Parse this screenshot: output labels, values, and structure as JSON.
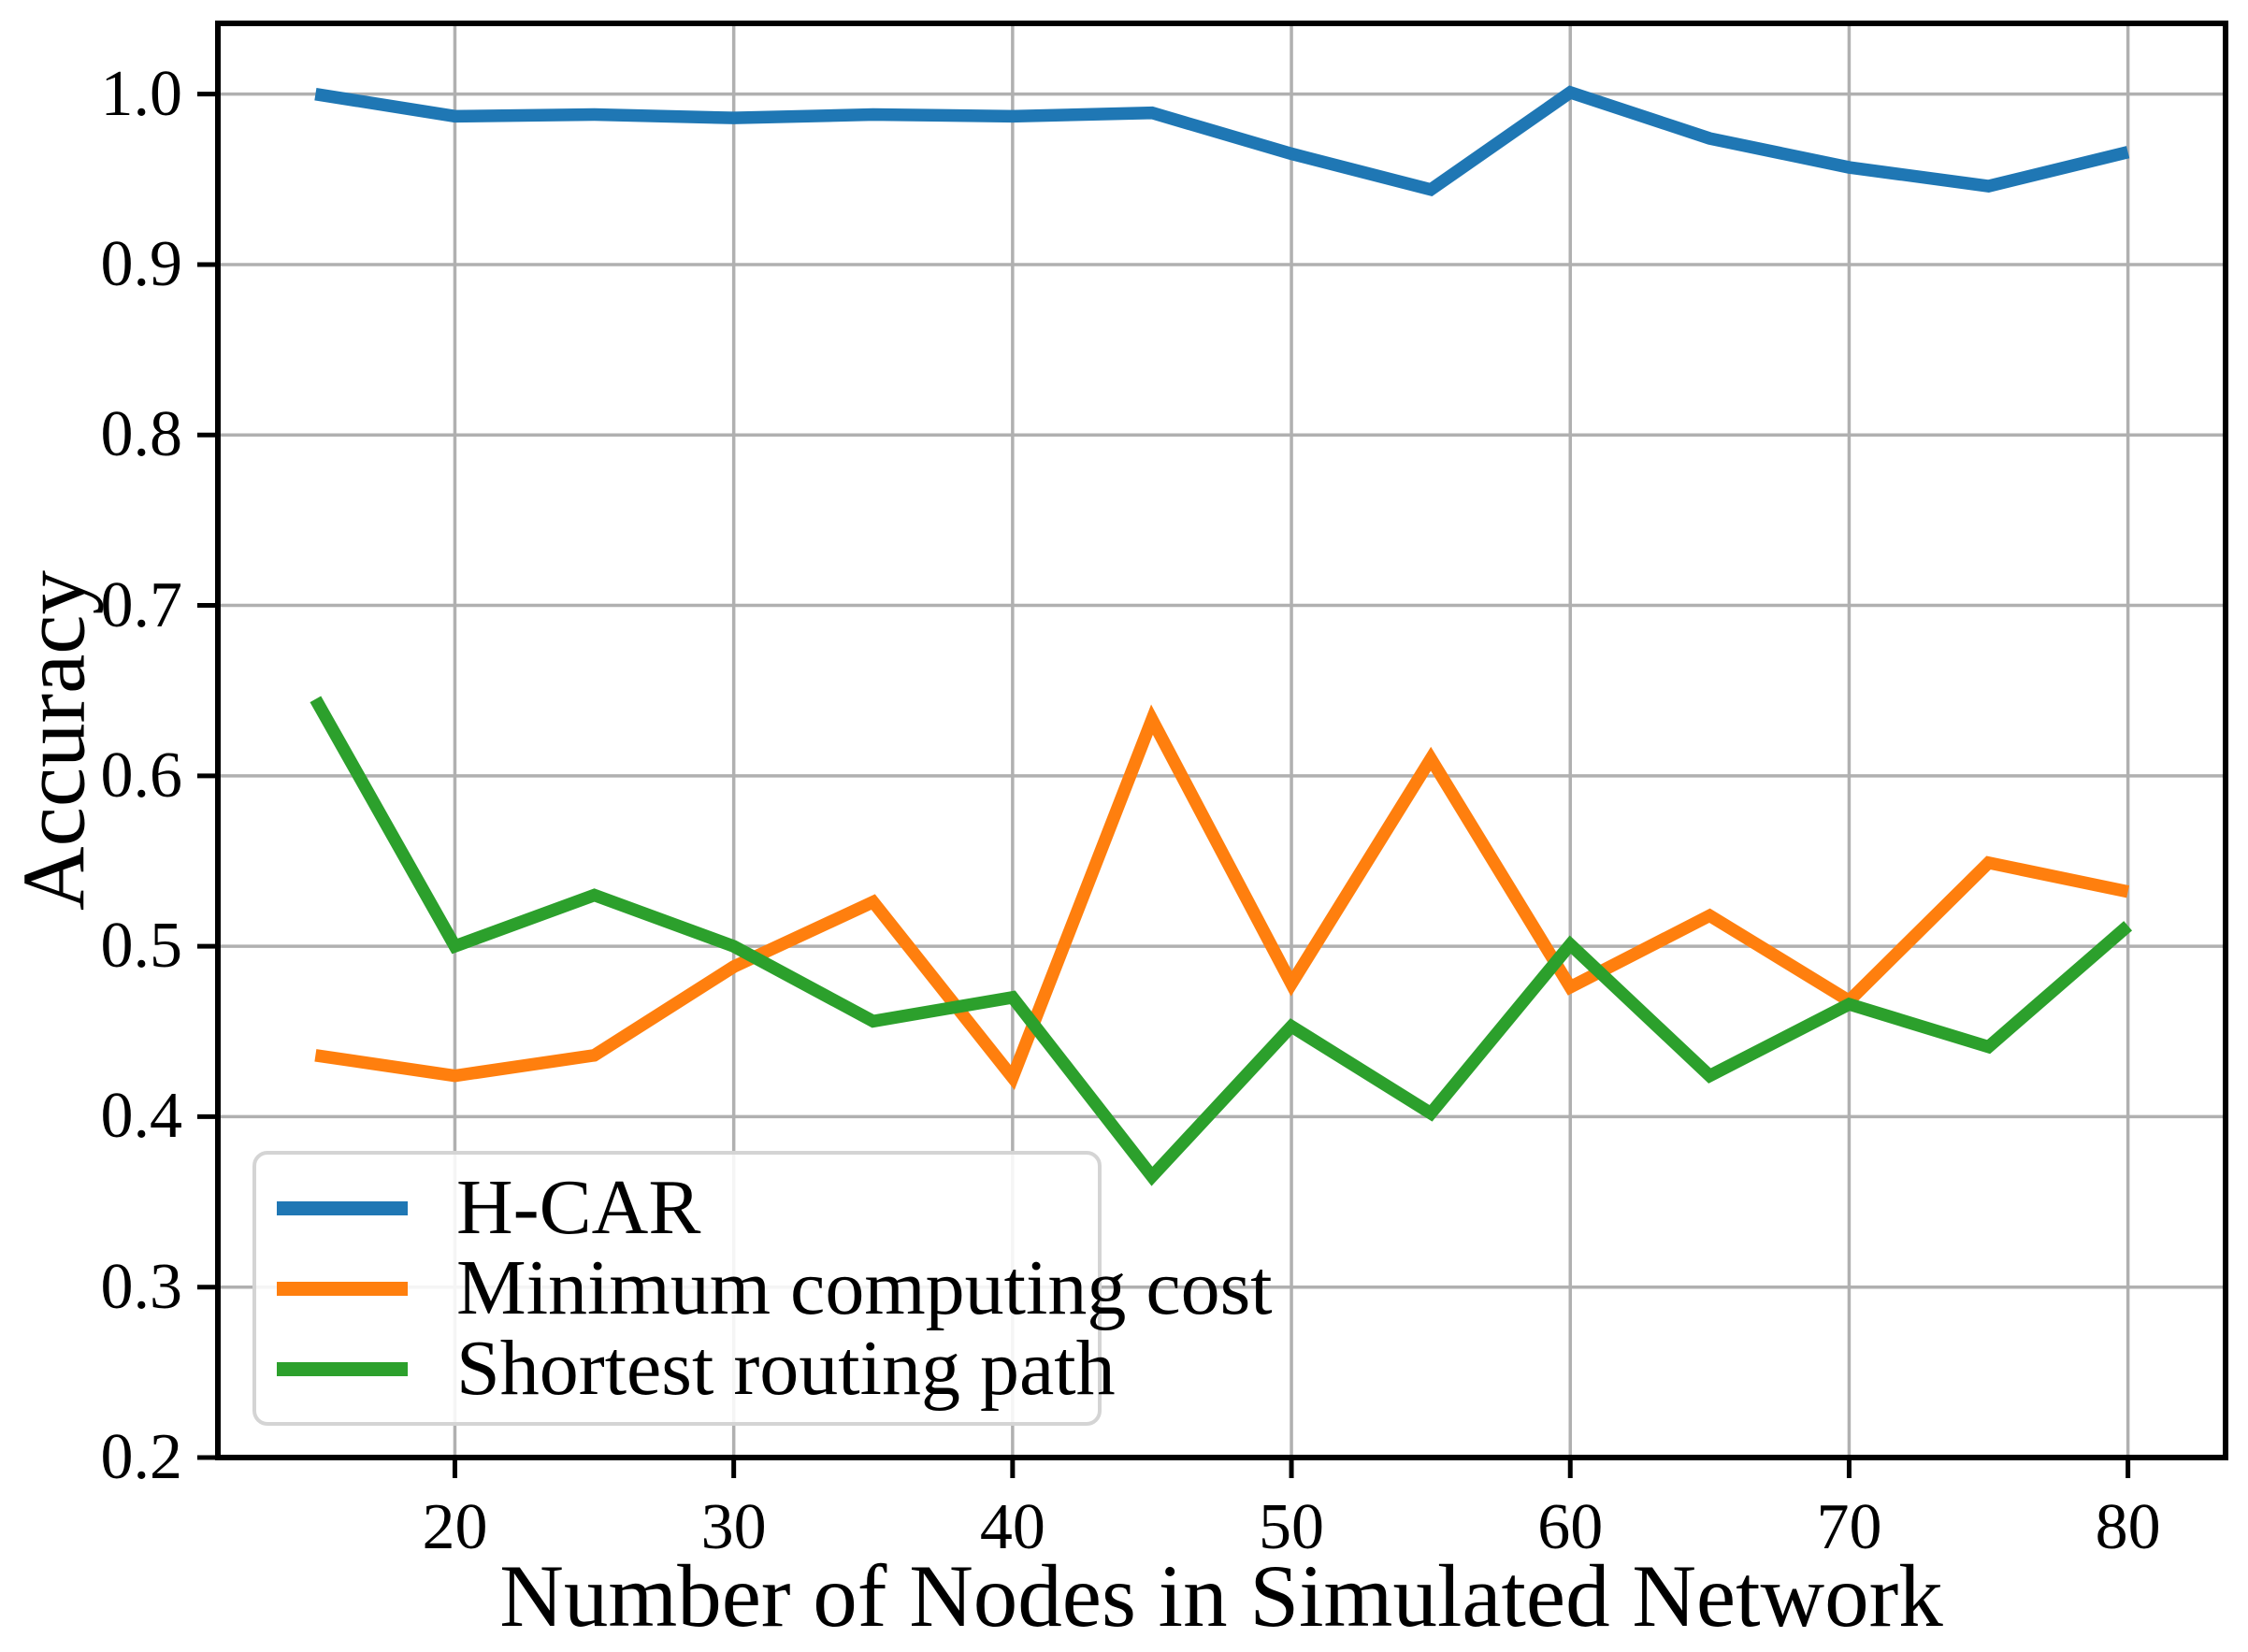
{
  "chart_data": {
    "type": "line",
    "title": "",
    "xlabel": "Number of Nodes in Simulated Network",
    "ylabel": "Accuracy",
    "x": [
      15,
      20,
      25,
      30,
      35,
      40,
      45,
      50,
      55,
      60,
      65,
      70,
      75,
      80
    ],
    "series": [
      {
        "name": "H-CAR",
        "color": "#1f77b4",
        "values": [
          1.0,
          0.987,
          0.988,
          0.986,
          0.988,
          0.987,
          0.989,
          0.965,
          0.944,
          1.001,
          0.974,
          0.957,
          0.946,
          0.966
        ]
      },
      {
        "name": "Minimum computing cost",
        "color": "#ff7f0e",
        "values": [
          0.436,
          0.424,
          0.436,
          0.488,
          0.526,
          0.423,
          0.633,
          0.478,
          0.61,
          0.476,
          0.518,
          0.468,
          0.549,
          0.532
        ]
      },
      {
        "name": "Shortest routing path",
        "color": "#2ca02c",
        "values": [
          0.645,
          0.5,
          0.53,
          0.5,
          0.456,
          0.47,
          0.365,
          0.453,
          0.402,
          0.501,
          0.424,
          0.466,
          0.441,
          0.512
        ]
      }
    ],
    "x_ticks": [
      20,
      30,
      40,
      50,
      60,
      70,
      80
    ],
    "y_ticks": [
      0.2,
      0.3,
      0.4,
      0.5,
      0.6,
      0.7,
      0.8,
      0.9,
      1.0
    ],
    "xlim": [
      11.5,
      83.5
    ],
    "ylim": [
      0.2,
      1.0415
    ],
    "grid": true,
    "grid_color": "#b0b0b0",
    "spine_color": "#000000",
    "legend_position": "lower left"
  }
}
